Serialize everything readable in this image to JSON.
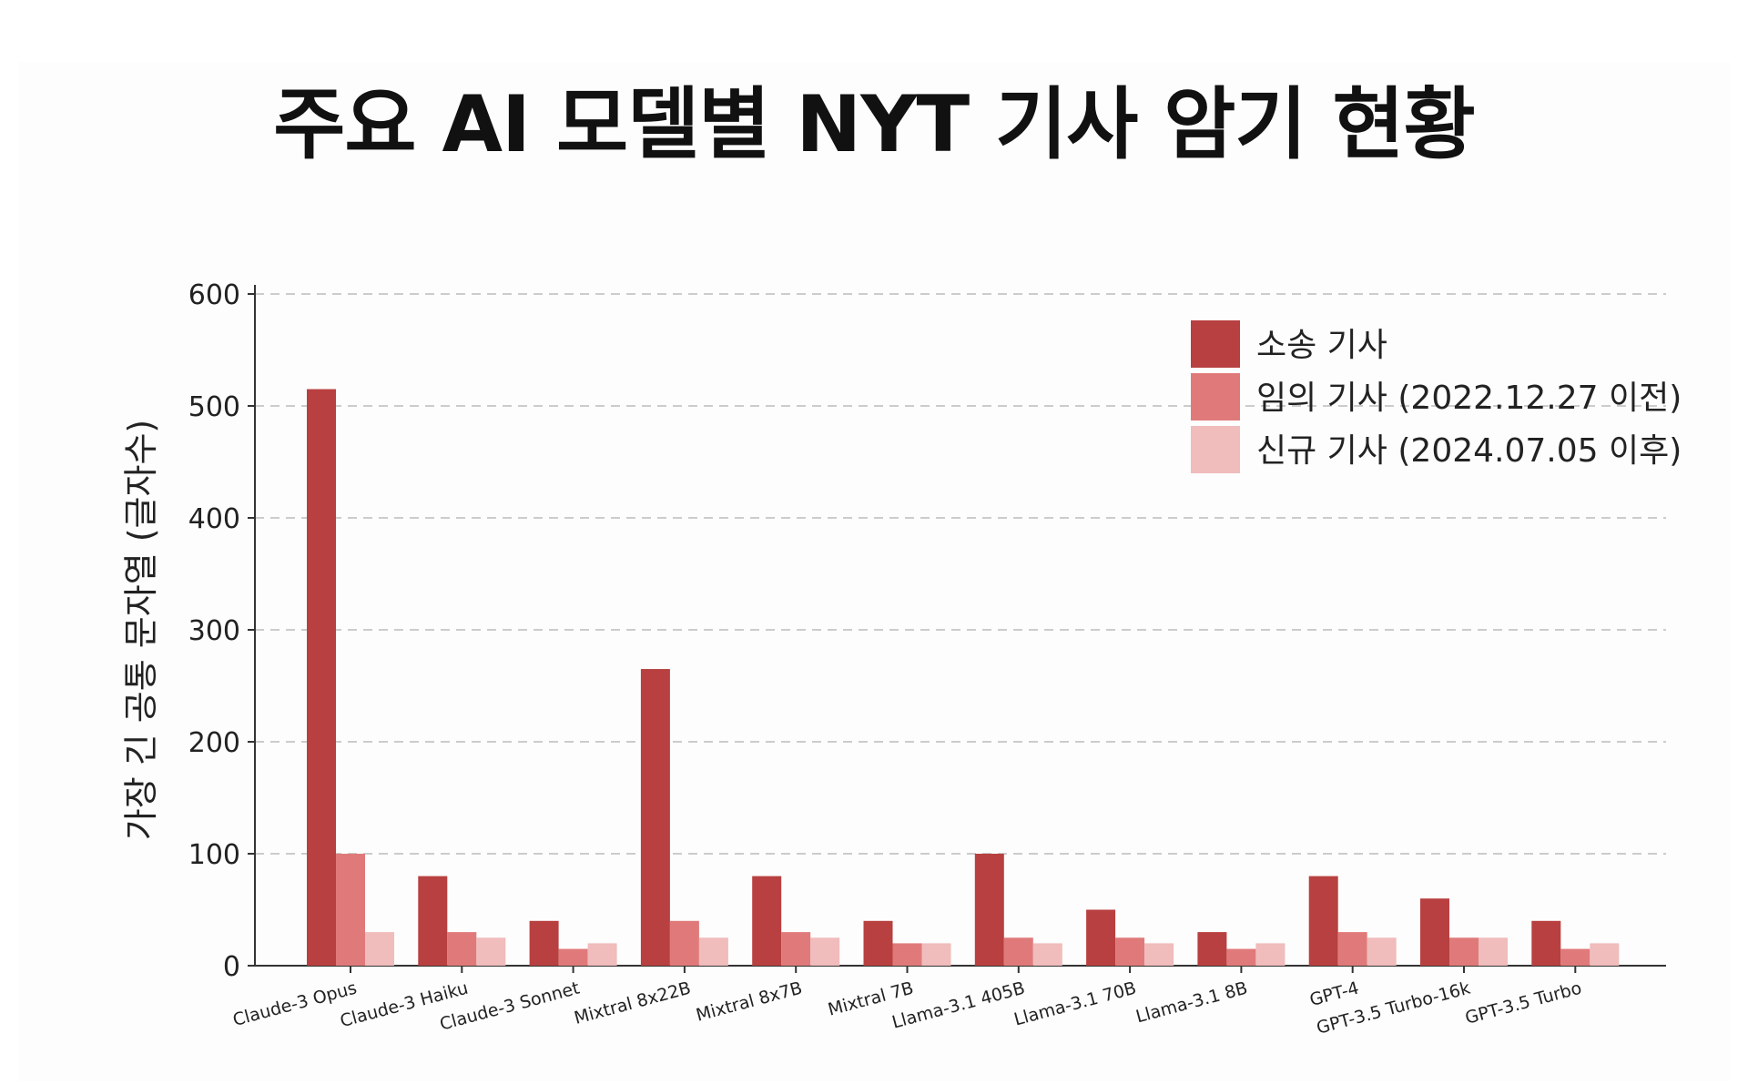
{
  "chart_data": {
    "type": "bar",
    "title": "주요 AI 모델별 NYT 기사 암기 현황",
    "ylabel": "가장 긴 공통 문자열 (글자수)",
    "xlabel": "",
    "ylim": [
      0,
      600
    ],
    "yticks": [
      0,
      100,
      200,
      300,
      400,
      500,
      600
    ],
    "grid": true,
    "legend_position": "top-right",
    "categories": [
      "Claude-3 Opus",
      "Claude-3 Haiku",
      "Claude-3 Sonnet",
      "Mixtral 8x22B",
      "Mixtral 8x7B",
      "Mixtral 7B",
      "Llama-3.1 405B",
      "Llama-3.1 70B",
      "Llama-3.1 8B",
      "GPT-4",
      "GPT-3.5 Turbo-16k",
      "GPT-3.5 Turbo"
    ],
    "series": [
      {
        "name": "소송 기사",
        "color": "#b84040",
        "values": [
          515,
          80,
          40,
          265,
          80,
          40,
          100,
          50,
          30,
          80,
          60,
          40
        ]
      },
      {
        "name": "임의 기사 (2022.12.27 이전)",
        "color": "#e07a7a",
        "values": [
          100,
          30,
          15,
          40,
          30,
          20,
          25,
          25,
          15,
          30,
          25,
          15
        ]
      },
      {
        "name": "신규 기사 (2024.07.05 이후)",
        "color": "#f0bcbc",
        "values": [
          30,
          25,
          20,
          25,
          25,
          20,
          20,
          20,
          20,
          25,
          25,
          20
        ]
      }
    ]
  }
}
